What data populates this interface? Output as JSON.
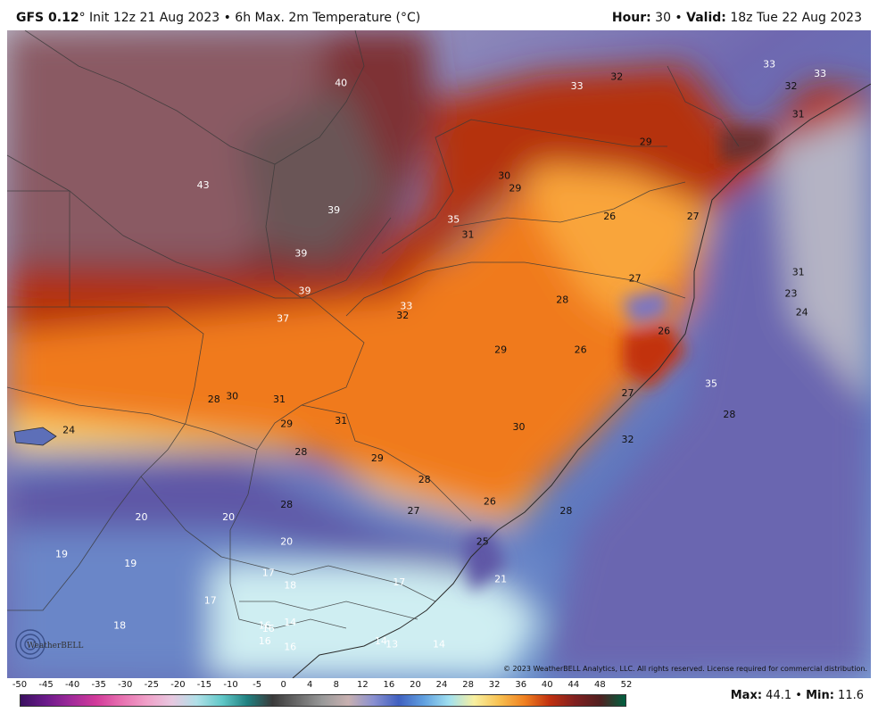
{
  "header": {
    "model": "GFS 0.12",
    "model_rest": "° Init 12z 21 Aug 2023 • 6h Max. 2m Temperature (°C)",
    "hour_label": "Hour:",
    "hour_value": " 30 • ",
    "valid_label": "Valid:",
    "valid_value": " 18z Tue 22 Aug 2023"
  },
  "copyright": "© 2023 WeatherBELL Analytics, LLC. All rights reserved. License required for commercial distribution.",
  "logo_text": "WeatherBELL",
  "footer": {
    "max_label": "Max:",
    "max_value": " 44.1 • ",
    "min_label": "Min:",
    "min_value": " 11.6"
  },
  "chart_data": {
    "type": "heatmap",
    "title": "GFS 0.12° Init 12z 21 Aug 2023 • 6h Max. 2m Temperature (°C)",
    "units": "°C",
    "colorbar_ticks": [
      "-50",
      "-45",
      "-40",
      "-35",
      "-30",
      "-25",
      "-20",
      "-15",
      "-10",
      "-5",
      "0",
      "4",
      "8",
      "12",
      "16",
      "20",
      "24",
      "28",
      "32",
      "36",
      "40",
      "44",
      "48",
      "52"
    ],
    "colors": {
      "hot_maroon": "#8a2015",
      "hot_red": "#c93a12",
      "orange": "#f07a1a",
      "yellow": "#fbd36a",
      "cool_purple": "#5e56a6",
      "cool_blue": "#5d84c6",
      "pale_cyan": "#cfeef2",
      "interior_mauve": "#8a5a64"
    },
    "point_labels": [
      {
        "value": "43",
        "lon": -61.6,
        "lat": -19.5
      },
      {
        "value": "40",
        "lon": -57.8,
        "lat": -16.2
      },
      {
        "value": "39",
        "lon": -58.0,
        "lat": -20.3
      },
      {
        "value": "39",
        "lon": -58.9,
        "lat": -21.7
      },
      {
        "value": "39",
        "lon": -58.8,
        "lat": -22.9
      },
      {
        "value": "37",
        "lon": -59.4,
        "lat": -23.8
      },
      {
        "value": "35",
        "lon": -54.7,
        "lat": -20.6
      },
      {
        "value": "31",
        "lon": -54.3,
        "lat": -21.1
      },
      {
        "value": "33",
        "lon": -56.0,
        "lat": -23.4
      },
      {
        "value": "32",
        "lon": -56.1,
        "lat": -23.7
      },
      {
        "value": "33",
        "lon": -51.3,
        "lat": -16.3
      },
      {
        "value": "32",
        "lon": -50.2,
        "lat": -16.0
      },
      {
        "value": "33",
        "lon": -46.0,
        "lat": -15.6
      },
      {
        "value": "32",
        "lon": -45.4,
        "lat": -16.3
      },
      {
        "value": "33",
        "lon": -44.6,
        "lat": -15.9
      },
      {
        "value": "31",
        "lon": -45.2,
        "lat": -17.2
      },
      {
        "value": "30",
        "lon": -53.3,
        "lat": -19.2
      },
      {
        "value": "29",
        "lon": -53.0,
        "lat": -19.6
      },
      {
        "value": "29",
        "lon": -49.4,
        "lat": -18.1
      },
      {
        "value": "26",
        "lon": -50.4,
        "lat": -20.5
      },
      {
        "value": "27",
        "lon": -48.1,
        "lat": -20.5
      },
      {
        "value": "27",
        "lon": -49.7,
        "lat": -22.5
      },
      {
        "value": "28",
        "lon": -51.7,
        "lat": -23.2
      },
      {
        "value": "26",
        "lon": -48.9,
        "lat": -24.2
      },
      {
        "value": "29",
        "lon": -53.4,
        "lat": -24.8
      },
      {
        "value": "26",
        "lon": -51.2,
        "lat": -24.8
      },
      {
        "value": "27",
        "lon": -49.9,
        "lat": -26.2
      },
      {
        "value": "35",
        "lon": -47.6,
        "lat": -25.9
      },
      {
        "value": "28",
        "lon": -47.1,
        "lat": -26.9
      },
      {
        "value": "30",
        "lon": -52.9,
        "lat": -27.3
      },
      {
        "value": "32",
        "lon": -49.9,
        "lat": -27.7
      },
      {
        "value": "28",
        "lon": -61.3,
        "lat": -26.4
      },
      {
        "value": "30",
        "lon": -60.8,
        "lat": -26.3
      },
      {
        "value": "31",
        "lon": -59.5,
        "lat": -26.4
      },
      {
        "value": "29",
        "lon": -59.3,
        "lat": -27.2
      },
      {
        "value": "31",
        "lon": -57.8,
        "lat": -27.1
      },
      {
        "value": "28",
        "lon": -58.9,
        "lat": -28.1
      },
      {
        "value": "29",
        "lon": -56.8,
        "lat": -28.3
      },
      {
        "value": "28",
        "lon": -55.5,
        "lat": -29.0
      },
      {
        "value": "24",
        "lon": -65.3,
        "lat": -27.4
      },
      {
        "value": "26",
        "lon": -53.7,
        "lat": -29.7
      },
      {
        "value": "27",
        "lon": -55.8,
        "lat": -30.0
      },
      {
        "value": "28",
        "lon": -51.6,
        "lat": -30.0
      },
      {
        "value": "28",
        "lon": -59.3,
        "lat": -29.8
      },
      {
        "value": "25",
        "lon": -53.9,
        "lat": -31.0
      },
      {
        "value": "20",
        "lon": -63.3,
        "lat": -30.2
      },
      {
        "value": "20",
        "lon": -60.9,
        "lat": -30.2
      },
      {
        "value": "20",
        "lon": -59.3,
        "lat": -31.0
      },
      {
        "value": "19",
        "lon": -65.5,
        "lat": -31.4
      },
      {
        "value": "19",
        "lon": -63.6,
        "lat": -31.7
      },
      {
        "value": "17",
        "lon": -59.8,
        "lat": -32.0
      },
      {
        "value": "18",
        "lon": -59.2,
        "lat": -32.4
      },
      {
        "value": "17",
        "lon": -56.2,
        "lat": -32.3
      },
      {
        "value": "21",
        "lon": -53.4,
        "lat": -32.2
      },
      {
        "value": "17",
        "lon": -61.4,
        "lat": -32.9
      },
      {
        "value": "18",
        "lon": -63.9,
        "lat": -33.7
      },
      {
        "value": "16",
        "lon": -59.9,
        "lat": -33.7
      },
      {
        "value": "16",
        "lon": -59.8,
        "lat": -33.8
      },
      {
        "value": "16",
        "lon": -59.9,
        "lat": -34.2
      },
      {
        "value": "14",
        "lon": -59.2,
        "lat": -33.6
      },
      {
        "value": "16",
        "lon": -59.2,
        "lat": -34.4
      },
      {
        "value": "14",
        "lon": -56.7,
        "lat": -34.2
      },
      {
        "value": "13",
        "lon": -56.4,
        "lat": -34.3
      },
      {
        "value": "14",
        "lon": -55.1,
        "lat": -34.3
      },
      {
        "value": "31",
        "lon": -45.2,
        "lat": -22.3
      },
      {
        "value": "23",
        "lon": -45.4,
        "lat": -23.0
      },
      {
        "value": "24",
        "lon": -45.1,
        "lat": -23.6
      }
    ]
  }
}
